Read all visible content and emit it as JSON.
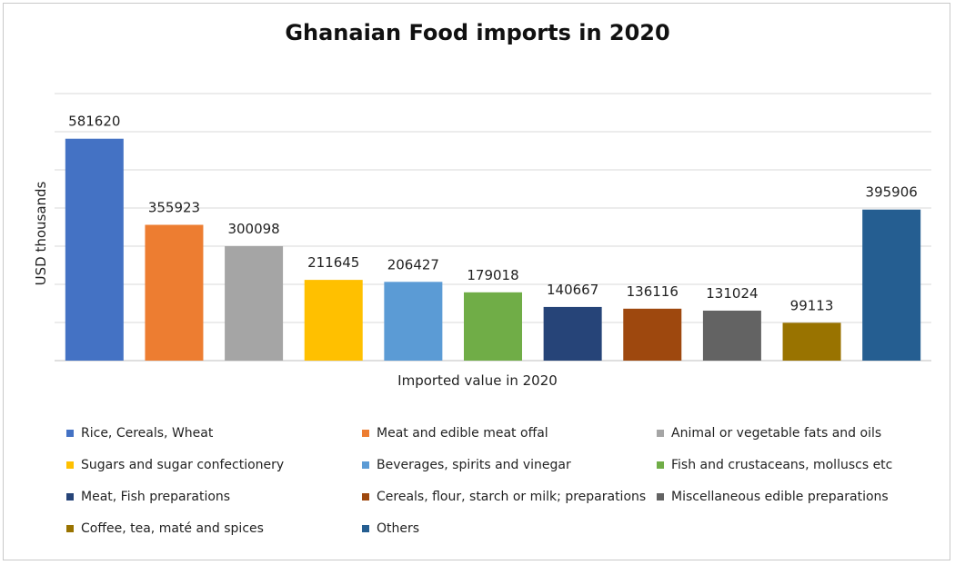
{
  "chart_data": {
    "type": "bar",
    "title": "Ghanaian Food imports in 2020",
    "ylabel": "USD thousands",
    "xlabel": "Imported value in 2020",
    "ylim": [
      0,
      700000
    ],
    "grid": true,
    "legend_position": "bottom",
    "series": [
      {
        "name": "Rice, Cereals, Wheat",
        "value": 581620,
        "color": "#4472C4"
      },
      {
        "name": "Meat and edible meat offal",
        "value": 355923,
        "color": "#ED7D31"
      },
      {
        "name": "Animal or vegetable fats and oils",
        "value": 300098,
        "color": "#A5A5A5"
      },
      {
        "name": "Sugars and sugar confectionery",
        "value": 211645,
        "color": "#FFC000"
      },
      {
        "name": "Beverages, spirits and vinegar",
        "value": 206427,
        "color": "#5B9BD5"
      },
      {
        "name": "Fish and crustaceans, molluscs etc",
        "value": 179018,
        "color": "#70AD47"
      },
      {
        "name": "Meat, Fish preparations",
        "value": 140667,
        "color": "#264478"
      },
      {
        "name": "Cereals, flour, starch or milk; preparations",
        "value": 136116,
        "color": "#9E480E"
      },
      {
        "name": "Miscellaneous edible preparations",
        "value": 131024,
        "color": "#636363"
      },
      {
        "name": "Coffee, tea, maté and spices",
        "value": 99113,
        "color": "#997300"
      },
      {
        "name": "Others",
        "value": 395906,
        "color": "#255E91"
      }
    ]
  }
}
